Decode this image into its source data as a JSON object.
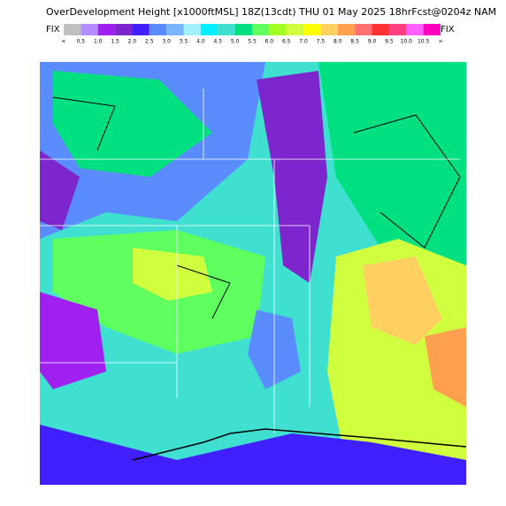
{
  "header": {
    "title": "OverDevelopment Height [x1000ftMSL] 18Z(13cdt) THU 01 May 2025 18hrFcst@0204z NAM",
    "left": "FIX",
    "right": "FIX"
  },
  "colorbar": {
    "labels": [
      "<",
      "0.5",
      "1.0",
      "1.5",
      "2.0",
      "2.5",
      "3.0",
      "3.5",
      "4.0",
      "4.5",
      "5.0",
      "5.5",
      "6.0",
      "6.5",
      "7.0",
      "7.5",
      "8.0",
      "8.5",
      "9.0",
      "9.5",
      "10.0",
      "10.5",
      ">"
    ],
    "colors": [
      "#c0c0c0",
      "#b48cff",
      "#a020f0",
      "#7d26cd",
      "#4020ff",
      "#5a8cff",
      "#78b4ff",
      "#a0f0ff",
      "#00f0ff",
      "#40e0d0",
      "#00e080",
      "#60ff60",
      "#a0ff20",
      "#d0ff40",
      "#ffff00",
      "#ffd060",
      "#ffa050",
      "#ff7070",
      "#ff3030",
      "#ff4080",
      "#ff60ff",
      "#ff00c0"
    ]
  }
}
